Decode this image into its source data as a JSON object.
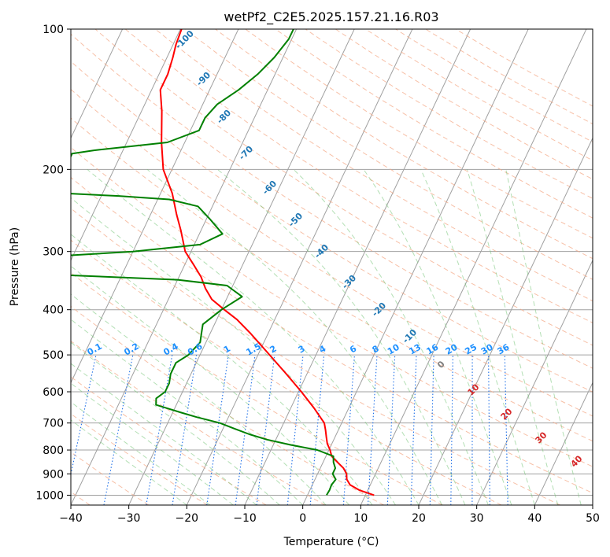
{
  "chart_data": {
    "type": "line",
    "subtype": "skew-T log-P diagram",
    "title": "wetPf2_C2E5.2025.157.21.16.R03",
    "xlabel": "Temperature (°C)",
    "ylabel": "Pressure (hPa)",
    "xlim": [
      -40,
      50
    ],
    "ylim": [
      1050,
      100
    ],
    "y_scale": "log",
    "grid": true,
    "x_ticks": [
      "−40",
      "−30",
      "−20",
      "−10",
      "0",
      "10",
      "20",
      "30",
      "40",
      "50"
    ],
    "x_tick_values": [
      -40,
      -30,
      -20,
      -10,
      0,
      10,
      20,
      30,
      40,
      50
    ],
    "y_ticks": [
      "100",
      "200",
      "300",
      "400",
      "500",
      "600",
      "700",
      "800",
      "900",
      "1000"
    ],
    "y_tick_values": [
      100,
      200,
      300,
      400,
      500,
      600,
      700,
      800,
      900,
      1000
    ],
    "series": [
      {
        "color": "#ff0000",
        "points": [
          {
            "p": 1000,
            "t": 11.5
          },
          {
            "p": 975,
            "t": 8.5
          },
          {
            "p": 950,
            "t": 6.5
          },
          {
            "p": 925,
            "t": 5.5
          },
          {
            "p": 900,
            "t": 5.0
          },
          {
            "p": 875,
            "t": 4.0
          },
          {
            "p": 850,
            "t": 2.5
          },
          {
            "p": 825,
            "t": 1.0
          },
          {
            "p": 800,
            "t": 0.2
          },
          {
            "p": 775,
            "t": -0.8
          },
          {
            "p": 750,
            "t": -1.5
          },
          {
            "p": 725,
            "t": -2.2
          },
          {
            "p": 700,
            "t": -3.0
          },
          {
            "p": 650,
            "t": -6.0
          },
          {
            "p": 600,
            "t": -9.5
          },
          {
            "p": 550,
            "t": -13.5
          },
          {
            "p": 500,
            "t": -18.0
          },
          {
            "p": 450,
            "t": -23.0
          },
          {
            "p": 420,
            "t": -26.5
          },
          {
            "p": 400,
            "t": -29.5
          },
          {
            "p": 380,
            "t": -32.5
          },
          {
            "p": 360,
            "t": -34.5
          },
          {
            "p": 340,
            "t": -36.2
          },
          {
            "p": 320,
            "t": -38.5
          },
          {
            "p": 300,
            "t": -41.0
          },
          {
            "p": 270,
            "t": -43.5
          },
          {
            "p": 250,
            "t": -45.5
          },
          {
            "p": 225,
            "t": -48.0
          },
          {
            "p": 200,
            "t": -51.5
          },
          {
            "p": 175,
            "t": -54.0
          },
          {
            "p": 150,
            "t": -56.5
          },
          {
            "p": 135,
            "t": -58.5
          },
          {
            "p": 125,
            "t": -58.5
          },
          {
            "p": 115,
            "t": -59.0
          },
          {
            "p": 108,
            "t": -59.5
          },
          {
            "p": 100,
            "t": -59.8
          }
        ]
      },
      {
        "color": "#008000",
        "points": [
          {
            "p": 1000,
            "t": 3.3
          },
          {
            "p": 975,
            "t": 3.4
          },
          {
            "p": 950,
            "t": 3.3
          },
          {
            "p": 925,
            "t": 3.6
          },
          {
            "p": 900,
            "t": 2.6
          },
          {
            "p": 875,
            "t": 2.6
          },
          {
            "p": 850,
            "t": 1.8
          },
          {
            "p": 825,
            "t": 1.3
          },
          {
            "p": 800,
            "t": -2.0
          },
          {
            "p": 780,
            "t": -7.0
          },
          {
            "p": 760,
            "t": -11.5
          },
          {
            "p": 740,
            "t": -15.0
          },
          {
            "p": 720,
            "t": -18.0
          },
          {
            "p": 700,
            "t": -21.0
          },
          {
            "p": 680,
            "t": -25.5
          },
          {
            "p": 665,
            "t": -28.5
          },
          {
            "p": 650,
            "t": -31.5
          },
          {
            "p": 640,
            "t": -33.5
          },
          {
            "p": 620,
            "t": -34.0
          },
          {
            "p": 600,
            "t": -33.0
          },
          {
            "p": 575,
            "t": -33.0
          },
          {
            "p": 550,
            "t": -33.5
          },
          {
            "p": 520,
            "t": -33.5
          },
          {
            "p": 500,
            "t": -32.0
          },
          {
            "p": 470,
            "t": -31.0
          },
          {
            "p": 450,
            "t": -31.5
          },
          {
            "p": 430,
            "t": -32.0
          },
          {
            "p": 400,
            "t": -30.0
          },
          {
            "p": 375,
            "t": -27.5
          },
          {
            "p": 355,
            "t": -31.0
          },
          {
            "p": 345,
            "t": -40.0
          },
          {
            "p": 337,
            "t": -60.0
          },
          {
            "p": 332,
            "t": -80.0
          },
          {
            "p": 328,
            "t": -95.0
          },
          {
            "p": 318,
            "t": -95.0
          },
          {
            "p": 314,
            "t": -84.0
          },
          {
            "p": 310,
            "t": -68.0
          },
          {
            "p": 300,
            "t": -50.0
          },
          {
            "p": 290,
            "t": -39.0
          },
          {
            "p": 275,
            "t": -36.0
          },
          {
            "p": 255,
            "t": -39.5
          },
          {
            "p": 240,
            "t": -42.5
          },
          {
            "p": 232,
            "t": -48.0
          },
          {
            "p": 228,
            "t": -57.0
          },
          {
            "p": 225,
            "t": -67.0
          },
          {
            "p": 210,
            "t": -68.0
          },
          {
            "p": 195,
            "t": -68.5
          },
          {
            "p": 185,
            "t": -68.5
          },
          {
            "p": 182,
            "t": -65.0
          },
          {
            "p": 175,
            "t": -53.0
          },
          {
            "p": 165,
            "t": -48.5
          },
          {
            "p": 155,
            "t": -48.5
          },
          {
            "p": 145,
            "t": -47.5
          },
          {
            "p": 135,
            "t": -45.0
          },
          {
            "p": 125,
            "t": -43.0
          },
          {
            "p": 115,
            "t": -41.5
          },
          {
            "p": 105,
            "t": -40.5
          },
          {
            "p": 100,
            "t": -40.5
          }
        ]
      }
    ],
    "dry_adiabat_labels": [
      "-100",
      "-90",
      "-80",
      "-70",
      "-60",
      "-50",
      "-40",
      "-30",
      "-20",
      "-10"
    ],
    "mixing_ratio_labels": [
      "0.1",
      "0.2",
      "0.4",
      "0.6",
      "1",
      "1.5",
      "2",
      "3",
      "4",
      "6",
      "8",
      "10",
      "13",
      "16",
      "20",
      "25",
      "30",
      "36"
    ],
    "moist_adiabat_labels": [
      "0",
      "10",
      "20",
      "30",
      "40"
    ],
    "colors": {
      "temperature": "#ff0000",
      "dewpoint": "#008000",
      "isotherm": "#a0a0a0",
      "isobar": "#a0a0a0",
      "dry_adiabat": "#f4a582",
      "moist_adiabat": "#74c476",
      "mixing_ratio": "#2171e8",
      "dry_adiabat_label": "#1f77b4",
      "mixing_ratio_label": "#1e90ff",
      "moist_adiabat_label": "#d62728",
      "moist_adiabat_zero_label": "#7f7f7f"
    }
  }
}
